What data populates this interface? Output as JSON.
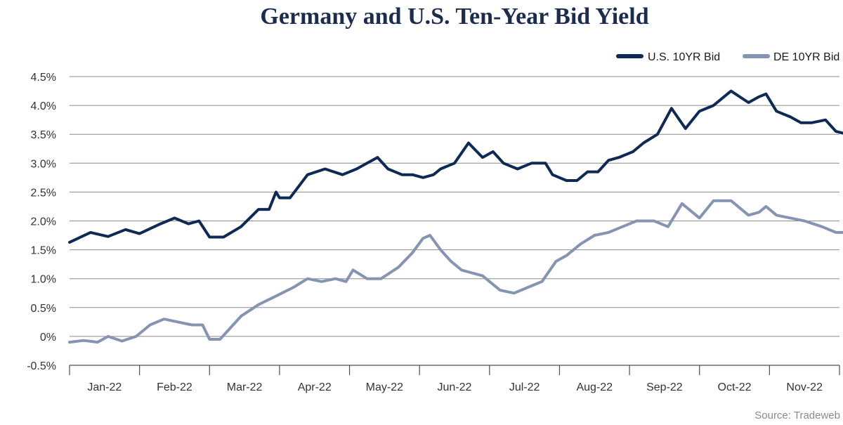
{
  "chart_data": {
    "type": "line",
    "title": "Germany and U.S. Ten-Year Bid Yield",
    "source": "Source: Tradeweb",
    "xlabel": "",
    "ylabel": "",
    "ylim": [
      -0.5,
      4.5
    ],
    "yticks": [
      "-0.5%",
      "0%",
      "0.5%",
      "1.0%",
      "1.5%",
      "2.0%",
      "2.5%",
      "3.0%",
      "3.5%",
      "4.0%",
      "4.5%"
    ],
    "categories": [
      "Jan-22",
      "Feb-22",
      "Mar-22",
      "Apr-22",
      "May-22",
      "Jun-22",
      "Jul-22",
      "Aug-22",
      "Sep-22",
      "Oct-22",
      "Nov-22"
    ],
    "legend_position": "top-right",
    "series": [
      {
        "name": "U.S. 10YR Bid",
        "color": "#0c2a55",
        "x": [
          0.0,
          0.3,
          0.55,
          0.8,
          1.0,
          1.3,
          1.5,
          1.7,
          1.85,
          2.0,
          2.2,
          2.45,
          2.7,
          2.85,
          2.95,
          3.0,
          3.15,
          3.4,
          3.65,
          3.9,
          4.1,
          4.25,
          4.4,
          4.55,
          4.75,
          4.9,
          5.05,
          5.2,
          5.3,
          5.5,
          5.7,
          5.9,
          6.05,
          6.2,
          6.4,
          6.6,
          6.8,
          6.9,
          7.1,
          7.25,
          7.4,
          7.55,
          7.7,
          7.85,
          8.05,
          8.2,
          8.4,
          8.6,
          8.8,
          9.0,
          9.2,
          9.45,
          9.7,
          9.85,
          9.95,
          10.1,
          10.3,
          10.45,
          10.6,
          10.8,
          10.95,
          11.05
        ],
        "values": [
          1.63,
          1.8,
          1.73,
          1.85,
          1.78,
          1.95,
          2.05,
          1.95,
          2.0,
          1.72,
          1.72,
          1.9,
          2.2,
          2.2,
          2.5,
          2.4,
          2.4,
          2.8,
          2.9,
          2.8,
          2.9,
          3.0,
          3.1,
          2.9,
          2.8,
          2.8,
          2.75,
          2.8,
          2.9,
          3.0,
          3.35,
          3.1,
          3.2,
          3.0,
          2.9,
          3.0,
          3.0,
          2.8,
          2.7,
          2.7,
          2.85,
          2.85,
          3.05,
          3.1,
          3.2,
          3.35,
          3.5,
          3.95,
          3.6,
          3.9,
          4.0,
          4.25,
          4.05,
          4.15,
          4.2,
          3.9,
          3.8,
          3.7,
          3.7,
          3.75,
          3.55,
          3.52
        ]
      },
      {
        "name": "DE 10YR Bid",
        "color": "#8594b2",
        "x": [
          0.0,
          0.2,
          0.4,
          0.55,
          0.75,
          0.95,
          1.15,
          1.35,
          1.55,
          1.75,
          1.9,
          2.0,
          2.15,
          2.45,
          2.7,
          2.95,
          3.2,
          3.4,
          3.6,
          3.8,
          3.95,
          4.05,
          4.25,
          4.45,
          4.7,
          4.9,
          5.05,
          5.15,
          5.3,
          5.45,
          5.6,
          5.75,
          5.9,
          6.15,
          6.35,
          6.55,
          6.75,
          6.95,
          7.1,
          7.3,
          7.5,
          7.7,
          7.9,
          8.1,
          8.35,
          8.55,
          8.75,
          8.9,
          9.0,
          9.2,
          9.45,
          9.7,
          9.85,
          9.95,
          10.1,
          10.3,
          10.5,
          10.75,
          10.95,
          11.05
        ],
        "values": [
          -0.1,
          -0.07,
          -0.1,
          0.0,
          -0.08,
          0.0,
          0.2,
          0.3,
          0.25,
          0.2,
          0.2,
          -0.05,
          -0.05,
          0.35,
          0.55,
          0.7,
          0.85,
          1.0,
          0.95,
          1.0,
          0.95,
          1.15,
          1.0,
          1.0,
          1.2,
          1.45,
          1.7,
          1.75,
          1.5,
          1.3,
          1.15,
          1.1,
          1.05,
          0.8,
          0.75,
          0.85,
          0.95,
          1.3,
          1.4,
          1.6,
          1.75,
          1.8,
          1.9,
          2.0,
          2.0,
          1.9,
          2.3,
          2.15,
          2.05,
          2.35,
          2.35,
          2.1,
          2.15,
          2.25,
          2.1,
          2.05,
          2.0,
          1.9,
          1.8,
          1.8
        ]
      }
    ]
  }
}
